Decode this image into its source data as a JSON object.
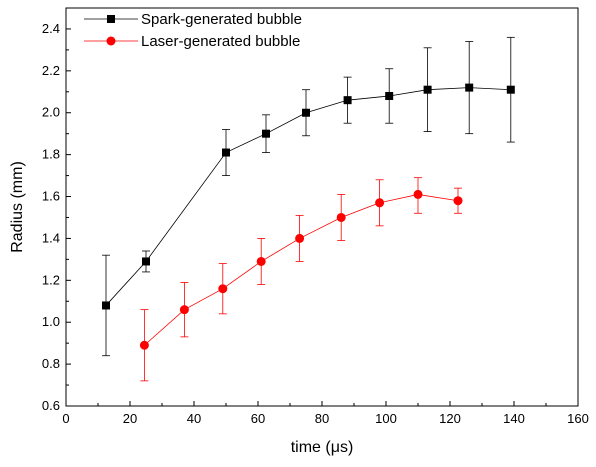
{
  "chart_data": {
    "type": "line",
    "title": "",
    "xlabel": "time (μs)",
    "ylabel": "Radius (mm)",
    "xlim": [
      0,
      160
    ],
    "ylim": [
      0.6,
      2.5
    ],
    "xticks": [
      0,
      20,
      40,
      60,
      80,
      100,
      120,
      140,
      160
    ],
    "yticks": [
      0.6,
      0.8,
      1.0,
      1.2,
      1.4,
      1.6,
      1.8,
      2.0,
      2.2,
      2.4
    ],
    "xtick_labels": [
      "0",
      "20",
      "40",
      "60",
      "80",
      "100",
      "120",
      "140",
      "160"
    ],
    "ytick_labels": [
      "0.6",
      "0.8",
      "1.0",
      "1.2",
      "1.4",
      "1.6",
      "1.8",
      "2.0",
      "2.2",
      "2.4"
    ],
    "grid": false,
    "legend_position": "top-left",
    "series": [
      {
        "name": "Spark-generated bubble",
        "color": "#000000",
        "marker": "square",
        "x": [
          12.5,
          25,
          50,
          62.5,
          75,
          88,
          101,
          113,
          126,
          139
        ],
        "y": [
          1.08,
          1.29,
          1.81,
          1.9,
          2.0,
          2.06,
          2.08,
          2.11,
          2.12,
          2.11
        ],
        "err_low": [
          0.24,
          0.05,
          0.11,
          0.09,
          0.11,
          0.11,
          0.13,
          0.2,
          0.22,
          0.25
        ],
        "err_high": [
          0.24,
          0.05,
          0.11,
          0.09,
          0.11,
          0.11,
          0.13,
          0.2,
          0.22,
          0.25
        ]
      },
      {
        "name": "Laser-generated bubble",
        "color": "#ff0000",
        "marker": "circle",
        "x": [
          24.5,
          37,
          49,
          61,
          73,
          86,
          98,
          110,
          122.5
        ],
        "y": [
          0.89,
          1.06,
          1.16,
          1.29,
          1.4,
          1.5,
          1.57,
          1.61,
          1.58
        ],
        "err_low": [
          0.17,
          0.13,
          0.12,
          0.11,
          0.11,
          0.11,
          0.11,
          0.09,
          0.06
        ],
        "err_high": [
          0.17,
          0.13,
          0.12,
          0.11,
          0.11,
          0.11,
          0.11,
          0.08,
          0.06
        ]
      }
    ]
  }
}
